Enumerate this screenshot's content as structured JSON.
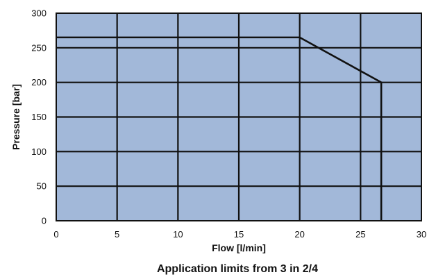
{
  "chart_data": {
    "type": "line",
    "title": "Application limits from 3 in 2/4",
    "xlabel": "Flow  [l/min]",
    "ylabel": "Pressure  [bar]",
    "xlim": [
      0,
      30
    ],
    "ylim": [
      0,
      300
    ],
    "x_ticks": [
      0,
      5,
      10,
      15,
      20,
      25,
      30
    ],
    "y_ticks": [
      0,
      50,
      100,
      150,
      200,
      250,
      300
    ],
    "x_tick_labels": [
      "0",
      "5",
      "10",
      "15",
      "20",
      "25",
      "30"
    ],
    "y_tick_labels": [
      "0",
      "50",
      "100",
      "150",
      "200",
      "250",
      "300"
    ],
    "grid": true,
    "plot_background": "#a2b8d9",
    "line_color": "#111111",
    "series": [
      {
        "x": [
          0,
          20,
          26.7,
          26.7
        ],
        "y": [
          265,
          265,
          200,
          0
        ]
      }
    ]
  }
}
